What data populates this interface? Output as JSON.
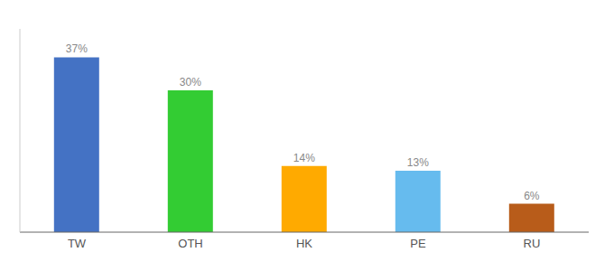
{
  "chart_data": {
    "type": "bar",
    "categories": [
      "TW",
      "OTH",
      "HK",
      "PE",
      "RU"
    ],
    "values": [
      37,
      30,
      14,
      13,
      6
    ],
    "value_labels": [
      "37%",
      "30%",
      "14%",
      "13%",
      "6%"
    ],
    "colors": [
      "#4472c4",
      "#33cc33",
      "#ffaa00",
      "#66bbee",
      "#b85c1a"
    ],
    "ylim": [
      0,
      43
    ],
    "tick_labels": "x",
    "data_labels": true
  }
}
